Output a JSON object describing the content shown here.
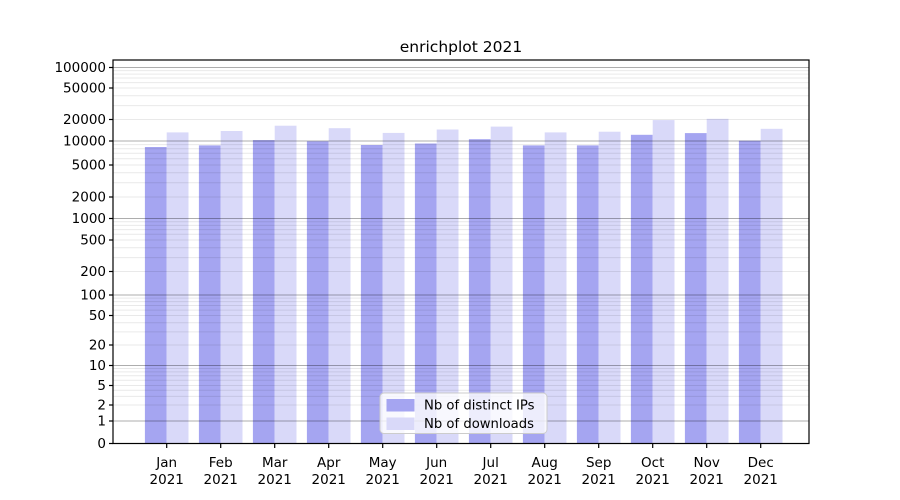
{
  "chart_data": {
    "type": "bar",
    "title": "enrichplot 2021",
    "categories": [
      {
        "month": "Jan",
        "year": "2021"
      },
      {
        "month": "Feb",
        "year": "2021"
      },
      {
        "month": "Mar",
        "year": "2021"
      },
      {
        "month": "Apr",
        "year": "2021"
      },
      {
        "month": "May",
        "year": "2021"
      },
      {
        "month": "Jun",
        "year": "2021"
      },
      {
        "month": "Jul",
        "year": "2021"
      },
      {
        "month": "Aug",
        "year": "2021"
      },
      {
        "month": "Sep",
        "year": "2021"
      },
      {
        "month": "Oct",
        "year": "2021"
      },
      {
        "month": "Nov",
        "year": "2021"
      },
      {
        "month": "Dec",
        "year": "2021"
      }
    ],
    "series": [
      {
        "name": "Nb of distinct IPs",
        "color": "#a5a5f1",
        "values": [
          8400,
          8800,
          10300,
          9900,
          8900,
          9300,
          10600,
          8800,
          8800,
          12200,
          12900,
          10100
        ]
      },
      {
        "name": "Nb of downloads",
        "color": "#d9d9f9",
        "values": [
          13200,
          13800,
          16400,
          15100,
          13000,
          14500,
          15900,
          13200,
          13500,
          19600,
          20400,
          14800
        ]
      }
    ],
    "y_scale": "symlog",
    "y_ticks": [
      0,
      1,
      2,
      5,
      10,
      20,
      50,
      100,
      200,
      500,
      1000,
      2000,
      5000,
      10000,
      20000,
      50000,
      100000
    ],
    "ylim": [
      0,
      125000
    ],
    "grid": true,
    "legend_position": "lower center",
    "colors": {
      "major_grid": "#b3b3b3",
      "minor_grid": "#e8e8e8",
      "spine": "#000000",
      "legend_border": "#cccccc",
      "legend_background": "#ffffff"
    }
  }
}
